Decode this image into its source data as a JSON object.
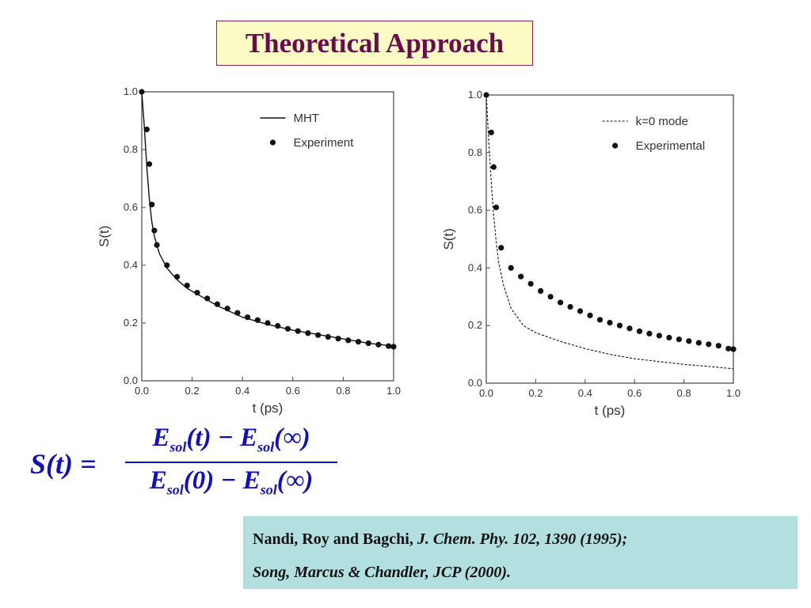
{
  "slide": {
    "title": "Theoretical Approach"
  },
  "colors": {
    "title_text": "#6b0b4f",
    "title_bg": "#fbfbc4",
    "formula": "#1010c0",
    "reference_bg": "#b2dfe0"
  },
  "formula": {
    "lhs": "S(t) =",
    "numerator": {
      "e1": "E",
      "sub1": "sol",
      "arg1": "(t)",
      "minus": "−",
      "e2": "E",
      "sub2": "sol",
      "arg2": "(∞)"
    },
    "denominator": {
      "e1": "E",
      "sub1": "sol",
      "arg1": "(0)",
      "minus": "−",
      "e2": "E",
      "sub2": "sol",
      "arg2": "(∞)"
    }
  },
  "reference": {
    "line1_authors": "Nandi, Roy and Bagchi,",
    "line1_journal": "J. Chem. Phy. 102, 1390 (1995);",
    "line2": "Song, Marcus & Chandler, JCP (2000)."
  },
  "chart_data": [
    {
      "type": "line",
      "xlabel": "t (ps)",
      "ylabel": "S(t)",
      "xlim": [
        0,
        1.0
      ],
      "ylim": [
        0,
        1.0
      ],
      "xticks": [
        "0.0",
        "0.2",
        "0.4",
        "0.6",
        "0.8",
        "1.0"
      ],
      "yticks": [
        "0.0",
        "0.2",
        "0.4",
        "0.6",
        "0.8",
        "1.0"
      ],
      "legend_position": "top-right",
      "series": [
        {
          "name": "MHT",
          "style": "solid",
          "x": [
            0,
            0.01,
            0.02,
            0.03,
            0.04,
            0.05,
            0.07,
            0.1,
            0.14,
            0.18,
            0.22,
            0.3,
            0.4,
            0.5,
            0.6,
            0.7,
            0.8,
            0.9,
            1.0
          ],
          "y": [
            1.0,
            0.88,
            0.74,
            0.63,
            0.55,
            0.5,
            0.44,
            0.39,
            0.35,
            0.32,
            0.3,
            0.26,
            0.22,
            0.195,
            0.175,
            0.16,
            0.145,
            0.13,
            0.12
          ]
        },
        {
          "name": "Experiment",
          "style": "dots",
          "x": [
            0.0,
            0.02,
            0.03,
            0.04,
            0.05,
            0.06,
            0.1,
            0.14,
            0.18,
            0.22,
            0.26,
            0.3,
            0.34,
            0.38,
            0.42,
            0.46,
            0.5,
            0.54,
            0.58,
            0.62,
            0.66,
            0.7,
            0.74,
            0.78,
            0.82,
            0.86,
            0.9,
            0.94,
            0.98,
            1.0
          ],
          "y": [
            1.0,
            0.87,
            0.75,
            0.61,
            0.52,
            0.47,
            0.4,
            0.36,
            0.33,
            0.305,
            0.285,
            0.265,
            0.25,
            0.235,
            0.22,
            0.21,
            0.2,
            0.19,
            0.18,
            0.172,
            0.165,
            0.158,
            0.152,
            0.146,
            0.14,
            0.135,
            0.13,
            0.125,
            0.12,
            0.118
          ]
        }
      ]
    },
    {
      "type": "line",
      "xlabel": "t (ps)",
      "ylabel": "S(t)",
      "xlim": [
        0,
        1.0
      ],
      "ylim": [
        0,
        1.0
      ],
      "xticks": [
        "0.0",
        "0.2",
        "0.4",
        "0.6",
        "0.8",
        "1.0"
      ],
      "yticks": [
        "0.0",
        "0.2",
        "0.4",
        "0.6",
        "0.8",
        "1.0"
      ],
      "legend_position": "top-right",
      "series": [
        {
          "name": "k=0 mode",
          "style": "dashed",
          "x": [
            0,
            0.01,
            0.02,
            0.03,
            0.04,
            0.05,
            0.07,
            0.1,
            0.15,
            0.2,
            0.3,
            0.4,
            0.5,
            0.6,
            0.7,
            0.8,
            0.9,
            1.0
          ],
          "y": [
            1.0,
            0.84,
            0.7,
            0.58,
            0.49,
            0.42,
            0.34,
            0.26,
            0.2,
            0.175,
            0.145,
            0.12,
            0.1,
            0.085,
            0.075,
            0.065,
            0.058,
            0.05
          ]
        },
        {
          "name": "Experimental",
          "style": "dots",
          "x": [
            0.0,
            0.02,
            0.03,
            0.04,
            0.06,
            0.1,
            0.14,
            0.18,
            0.22,
            0.26,
            0.3,
            0.34,
            0.38,
            0.42,
            0.46,
            0.5,
            0.54,
            0.58,
            0.62,
            0.66,
            0.7,
            0.74,
            0.78,
            0.82,
            0.86,
            0.9,
            0.94,
            0.98,
            1.0
          ],
          "y": [
            1.0,
            0.87,
            0.75,
            0.61,
            0.47,
            0.4,
            0.37,
            0.345,
            0.32,
            0.3,
            0.28,
            0.265,
            0.25,
            0.235,
            0.22,
            0.21,
            0.2,
            0.19,
            0.18,
            0.172,
            0.165,
            0.158,
            0.152,
            0.146,
            0.14,
            0.135,
            0.13,
            0.12,
            0.118
          ]
        }
      ]
    }
  ]
}
